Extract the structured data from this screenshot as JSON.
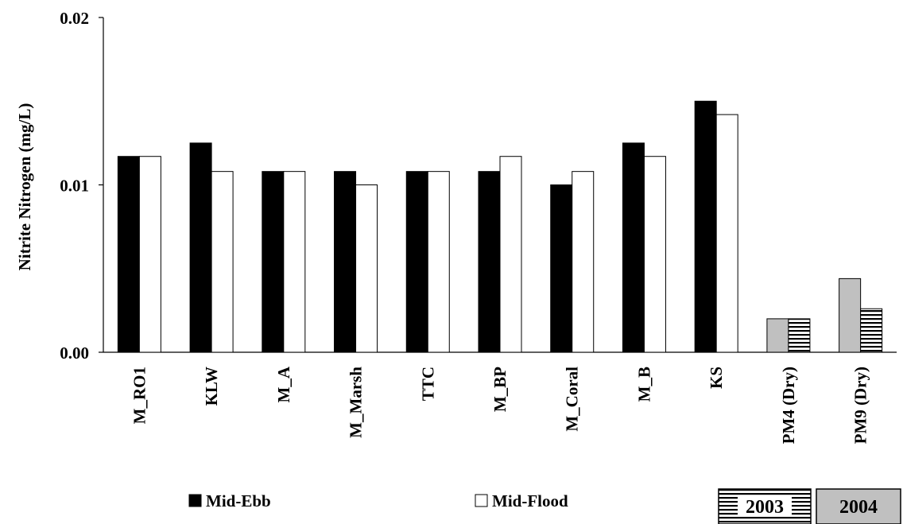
{
  "chart_data": {
    "type": "bar",
    "ylabel": "Nitrite Nitrogen (mg/L)",
    "xlabel": "",
    "ylim": [
      0,
      0.02
    ],
    "yticks": [
      "0.00",
      "0.01",
      "0.02"
    ],
    "ytick_values": [
      0,
      0.01,
      0.02
    ],
    "categories": [
      "M_RO1",
      "KLW",
      "M_A",
      "M_Marsh",
      "TTC",
      "M_BP",
      "M_Coral",
      "M_B",
      "KS",
      "PM4 (Dry)",
      "PM9 (Dry)"
    ],
    "series": [
      {
        "name": "Mid-Ebb",
        "values": [
          0.0117,
          0.0125,
          0.0108,
          0.0108,
          0.0108,
          0.0108,
          0.01,
          0.0125,
          0.015,
          0.002,
          0.0044
        ]
      },
      {
        "name": "Mid-Flood",
        "values": [
          0.0117,
          0.0108,
          0.0108,
          0.01,
          0.0108,
          0.0117,
          0.0108,
          0.0117,
          0.0142,
          0.002,
          0.0026
        ]
      }
    ],
    "dry_categories": [
      "PM4 (Dry)",
      "PM9 (Dry)"
    ],
    "year_legend": [
      "2003",
      "2004"
    ],
    "grid": false,
    "legend_position": "bottom",
    "colors": {
      "mid_ebb": "#000000",
      "mid_flood": "#ffffff",
      "dry_first": "#c0c0c0",
      "dry_second_pattern": "horizontal-stripes",
      "year_2004_fill": "#c0c0c0"
    }
  }
}
